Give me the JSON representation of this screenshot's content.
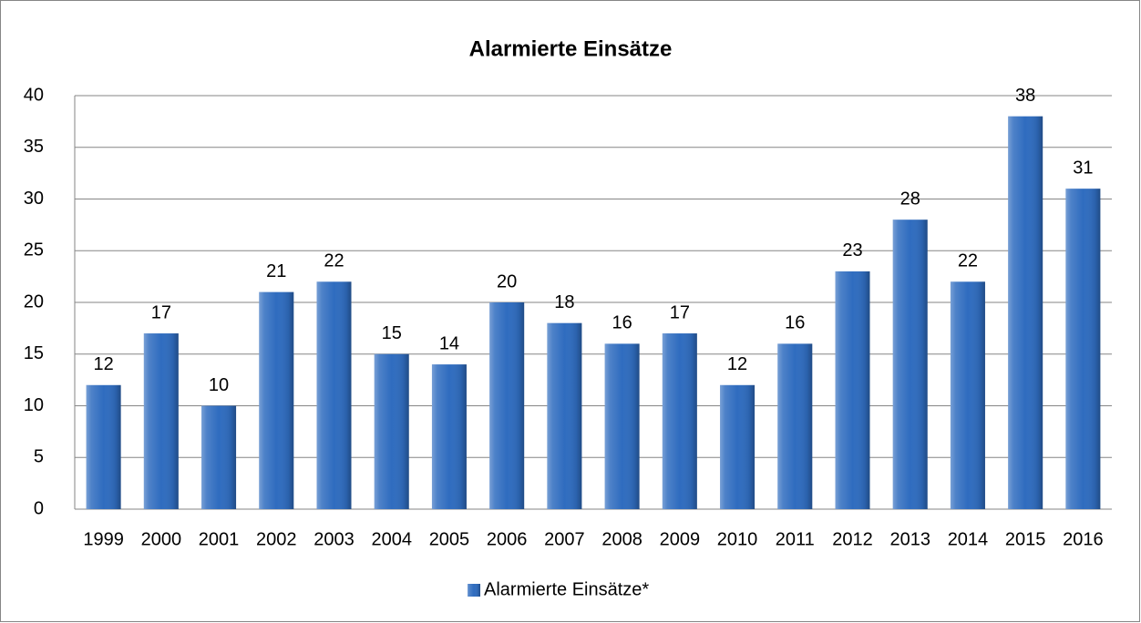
{
  "chart_data": {
    "type": "bar",
    "title": "Alarmierte Einsätze",
    "categories": [
      "1999",
      "2000",
      "2001",
      "2002",
      "2003",
      "2004",
      "2005",
      "2006",
      "2007",
      "2008",
      "2009",
      "2010",
      "2011",
      "2012",
      "2013",
      "2014",
      "2015",
      "2016"
    ],
    "series": [
      {
        "name": "Alarmierte Einsätze*",
        "color": "#2f6cbf",
        "values": [
          12,
          17,
          10,
          21,
          22,
          15,
          14,
          20,
          18,
          16,
          17,
          12,
          16,
          23,
          28,
          22,
          38,
          31
        ]
      }
    ],
    "ylim": [
      0,
      40
    ],
    "yticks": [
      0,
      5,
      10,
      15,
      20,
      25,
      30,
      35,
      40
    ],
    "grid": true,
    "legend": "bottom"
  }
}
